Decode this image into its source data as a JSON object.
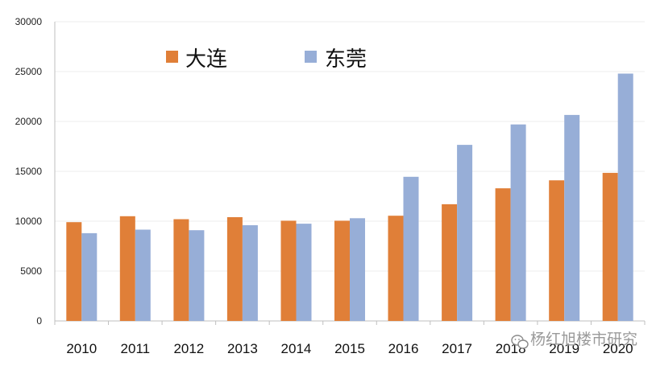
{
  "chart_data": {
    "type": "bar",
    "categories": [
      "2010",
      "2011",
      "2012",
      "2013",
      "2014",
      "2015",
      "2016",
      "2017",
      "2018",
      "2019",
      "2020"
    ],
    "series": [
      {
        "name": "大连",
        "color": "#E07F38",
        "values": [
          9900,
          10500,
          10200,
          10400,
          10050,
          10050,
          10550,
          11700,
          13300,
          14100,
          14850
        ]
      },
      {
        "name": "东莞",
        "color": "#97AED7",
        "values": [
          8800,
          9150,
          9100,
          9600,
          9750,
          10300,
          14450,
          17650,
          19700,
          20650,
          24800
        ]
      }
    ],
    "yticks": [
      "0",
      "5000",
      "10000",
      "15000",
      "20000",
      "25000",
      "30000"
    ],
    "ylim": [
      0,
      30000
    ],
    "grid": true,
    "legend": "top-left"
  },
  "watermark": {
    "text": "杨红旭楼市研究",
    "icon": "wechat-icon"
  }
}
